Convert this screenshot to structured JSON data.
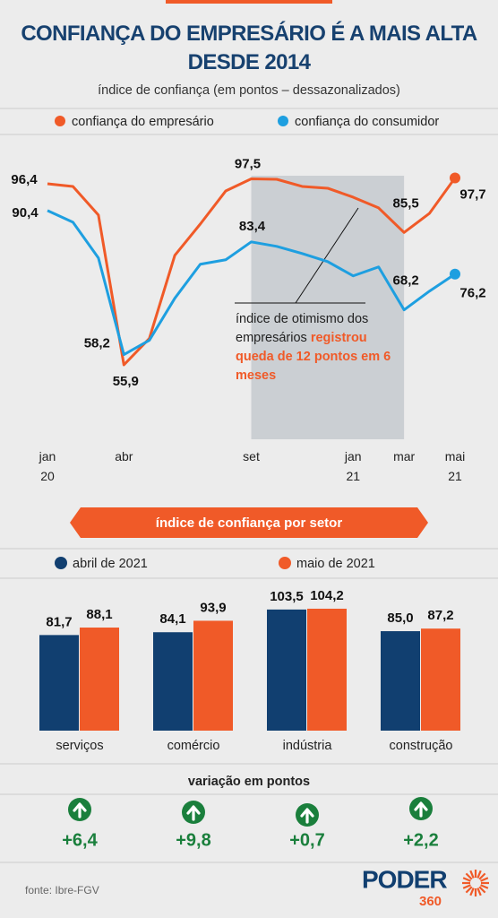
{
  "chart_data": [
    {
      "type": "line",
      "title": "CONFIANÇA DO EMPRESÁRIO É A MAIS ALTA DESDE 2014",
      "subtitle": "índice de confiança (em pontos – dessazonalizados)",
      "categories": [
        "jan\n20",
        null,
        null,
        "abr",
        null,
        null,
        null,
        null,
        "set",
        null,
        null,
        null,
        "jan\n21",
        null,
        "mar",
        null,
        "mai\n21"
      ],
      "series": [
        {
          "name": "confiança do empresário",
          "color": "#f05a28",
          "values": [
            96.4,
            95.8,
            89.4,
            55.9,
            61.8,
            80.4,
            87.4,
            94.8,
            97.5,
            97.4,
            95.8,
            95.4,
            93.4,
            91.0,
            85.5,
            89.8,
            97.7
          ],
          "value_labels": [
            "96,4",
            null,
            null,
            "55,9",
            null,
            null,
            null,
            null,
            "97,5",
            null,
            null,
            null,
            null,
            null,
            "85,5",
            null,
            "97,7"
          ]
        },
        {
          "name": "confiança do consumidor",
          "color": "#1e9fe0",
          "values": [
            90.4,
            87.8,
            79.8,
            58.2,
            61.4,
            70.8,
            78.4,
            79.4,
            83.4,
            82.4,
            80.8,
            79.0,
            75.8,
            77.8,
            68.2,
            72.4,
            76.2
          ],
          "value_labels": [
            "90,4",
            null,
            null,
            "58,2",
            null,
            null,
            null,
            null,
            "83,4",
            null,
            null,
            null,
            null,
            null,
            "68,2",
            null,
            "76,2"
          ]
        }
      ],
      "annotation": {
        "text": "índice de otimismo dos empresários",
        "highlight": "registrou queda de 12 pontos em 6 meses"
      }
    },
    {
      "type": "bar",
      "title": "índice de confiança por setor",
      "categories": [
        "serviços",
        "comércio",
        "indústria",
        "construção"
      ],
      "series": [
        {
          "name": "abril de 2021",
          "color": "#113f70",
          "values": [
            81.7,
            84.1,
            103.5,
            85.0
          ],
          "value_labels": [
            "81,7",
            "84,1",
            "103,5",
            "85,0"
          ]
        },
        {
          "name": "maio de 2021",
          "color": "#f05a28",
          "values": [
            88.1,
            93.9,
            104.2,
            87.2
          ],
          "value_labels": [
            "88,1",
            "93,9",
            "104,2",
            "87,2"
          ]
        }
      ],
      "variation": {
        "title": "variação em pontos",
        "values": [
          6.4,
          9.8,
          0.7,
          2.2
        ],
        "value_labels": [
          "+6,4",
          "+9,8",
          "+0,7",
          "+2,2"
        ]
      }
    }
  ],
  "footer": {
    "source": "fonte: Ibre-FGV",
    "logo": "PODER",
    "logo_sub": "360"
  }
}
